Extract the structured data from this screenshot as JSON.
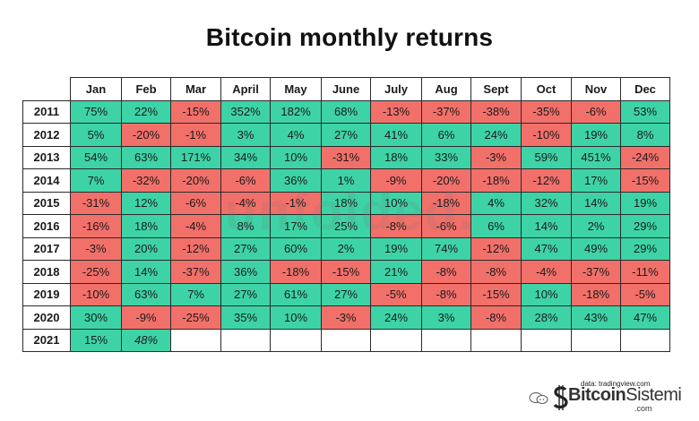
{
  "chart_data": {
    "type": "table",
    "title": "Bitcoin monthly returns",
    "columns": [
      "Jan",
      "Feb",
      "Mar",
      "April",
      "May",
      "June",
      "July",
      "Aug",
      "Sept",
      "Oct",
      "Nov",
      "Dec"
    ],
    "rows": [
      {
        "year": "2011",
        "values": [
          "75%",
          "22%",
          "-15%",
          "352%",
          "182%",
          "68%",
          "-13%",
          "-37%",
          "-38%",
          "-35%",
          "-6%",
          "53%"
        ]
      },
      {
        "year": "2012",
        "values": [
          "5%",
          "-20%",
          "-1%",
          "3%",
          "4%",
          "27%",
          "41%",
          "6%",
          "24%",
          "-10%",
          "19%",
          "8%"
        ]
      },
      {
        "year": "2013",
        "values": [
          "54%",
          "63%",
          "171%",
          "34%",
          "10%",
          "-31%",
          "18%",
          "33%",
          "-3%",
          "59%",
          "451%",
          "-24%"
        ]
      },
      {
        "year": "2014",
        "values": [
          "7%",
          "-32%",
          "-20%",
          "-6%",
          "36%",
          "1%",
          "-9%",
          "-20%",
          "-18%",
          "-12%",
          "17%",
          "-15%"
        ]
      },
      {
        "year": "2015",
        "values": [
          "-31%",
          "12%",
          "-6%",
          "-4%",
          "-1%",
          "18%",
          "10%",
          "-18%",
          "4%",
          "32%",
          "14%",
          "19%"
        ]
      },
      {
        "year": "2016",
        "values": [
          "-16%",
          "18%",
          "-4%",
          "8%",
          "17%",
          "25%",
          "-8%",
          "-6%",
          "6%",
          "14%",
          "2%",
          "29%"
        ]
      },
      {
        "year": "2017",
        "values": [
          "-3%",
          "20%",
          "-12%",
          "27%",
          "60%",
          "2%",
          "19%",
          "74%",
          "-12%",
          "47%",
          "49%",
          "29%"
        ]
      },
      {
        "year": "2018",
        "values": [
          "-25%",
          "14%",
          "-37%",
          "36%",
          "-18%",
          "-15%",
          "21%",
          "-8%",
          "-8%",
          "-4%",
          "-37%",
          "-11%"
        ]
      },
      {
        "year": "2019",
        "values": [
          "-10%",
          "63%",
          "7%",
          "27%",
          "61%",
          "27%",
          "-5%",
          "-8%",
          "-15%",
          "10%",
          "-18%",
          "-5%"
        ]
      },
      {
        "year": "2020",
        "values": [
          "30%",
          "-9%",
          "-25%",
          "35%",
          "10%",
          "-3%",
          "24%",
          "3%",
          "-8%",
          "28%",
          "43%",
          "47%"
        ]
      },
      {
        "year": "2021",
        "values": [
          "15%",
          "48%",
          "",
          "",
          "",
          "",
          "",
          "",
          "",
          "",
          "",
          ""
        ]
      }
    ],
    "italic_cells": [
      [
        10,
        1
      ]
    ],
    "colors": {
      "positive": "#3ed3a6",
      "negative": "#f2706a",
      "empty": "#ffffff"
    }
  },
  "watermark": "unfolded.",
  "source": "data: tradingview.com",
  "logo": {
    "brand_bold": "Bitcoin",
    "brand_thin": "Sistemi",
    "suffix": ".com"
  }
}
